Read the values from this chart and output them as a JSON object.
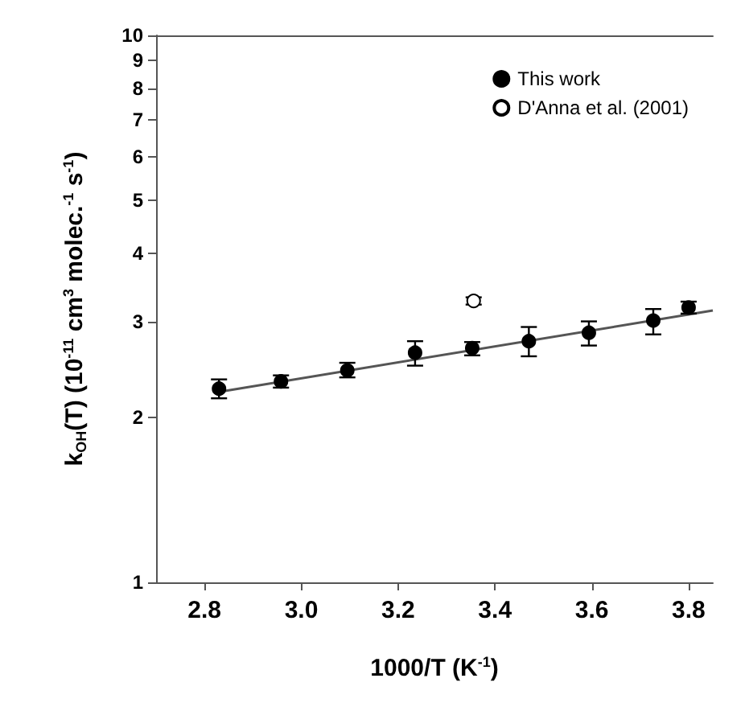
{
  "chart_data": {
    "type": "scatter",
    "xlabel": "1000/T (K$^{-1}$)",
    "ylabel": "k$_{OH}$(T) (10$^{-11}$ cm$^{3}$ molec.$^{-1}$ s$^{-1}$)",
    "x": [
      2.83,
      2.958,
      3.095,
      3.235,
      3.353,
      3.47,
      3.594,
      3.727,
      3.8
    ],
    "series": [
      {
        "name": "This work",
        "color": "#000000",
        "marker": "circle",
        "values": [
          2.26,
          2.33,
          2.44,
          2.63,
          2.68,
          2.76,
          2.86,
          3.01,
          3.18
        ],
        "errors": [
          [
            2.17,
            2.35
          ],
          [
            2.27,
            2.39
          ],
          [
            2.37,
            2.52
          ],
          [
            2.49,
            2.76
          ],
          [
            2.6,
            2.75
          ],
          [
            2.59,
            2.93
          ],
          [
            2.71,
            3.0
          ],
          [
            2.84,
            3.16
          ],
          [
            3.1,
            3.26
          ]
        ]
      },
      {
        "name": "D'Anna et al. (2001)",
        "color": "#ffffff",
        "marker": "circle",
        "x": [
          3.356
        ],
        "values": [
          3.27
        ],
        "errors": [
          [
            3.22,
            3.32
          ]
        ]
      },
      {
        "type": "line",
        "color": "#555555",
        "x": [
          2.83,
          3.85
        ],
        "values": [
          2.23,
          3.14
        ]
      }
    ],
    "xlim": [
      2.7,
      3.85
    ],
    "xticks": [
      2.8,
      {
        "value": 3,
        "label": "3.0"
      },
      3.2,
      3.4,
      3.6,
      3.8
    ],
    "ylim": [
      1,
      10
    ],
    "yticks": [
      1,
      2,
      3,
      4,
      5,
      6,
      7,
      8,
      9,
      10
    ],
    "log": true,
    "grid": false,
    "legend": "top right"
  }
}
